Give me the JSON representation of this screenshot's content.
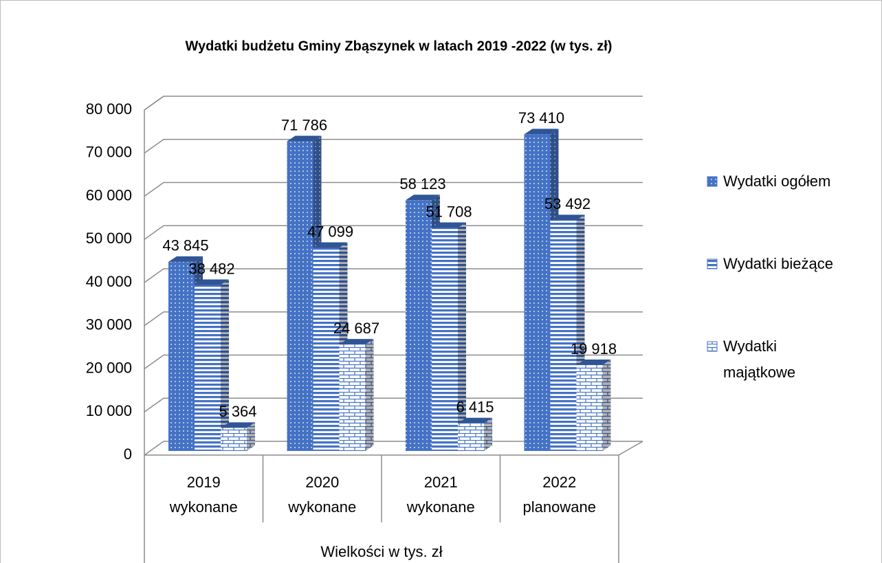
{
  "chart_data": {
    "type": "bar3d",
    "title": "Wydatki budżetu Gminy Zbąszynek w latach 2019 -2022 (w tys. zł)",
    "categories": [
      "2019 wykonane",
      "2020 wykonane",
      "2021 wykonane",
      "2022 planowane"
    ],
    "category_group": "Wielkości w tys. zł",
    "series": [
      {
        "name": "Wydatki ogółem",
        "color": "#4472c4",
        "pattern": "dots",
        "values": [
          43845,
          71786,
          58123,
          73410
        ],
        "value_labels": [
          "43 845",
          "71 786",
          "58 123",
          "73 410"
        ]
      },
      {
        "name": "Wydatki bieżące",
        "color": "#4472c4",
        "pattern": "stripes",
        "values": [
          38482,
          47099,
          51708,
          53492
        ],
        "value_labels": [
          "38 482",
          "47 099",
          "51 708",
          "53 492"
        ]
      },
      {
        "name": "Wydatki majątkowe",
        "color": "#4472c4",
        "pattern": "bricks",
        "values": [
          5364,
          24687,
          6415,
          19918
        ],
        "value_labels": [
          "5 364",
          "24 687",
          "6 415",
          "19 918"
        ]
      }
    ],
    "ylim": [
      0,
      80000
    ],
    "yticks": [
      0,
      {
        "value": 10000,
        "label": "10 000"
      },
      {
        "value": 20000,
        "label": "20 000"
      },
      {
        "value": 30000,
        "label": "30 000"
      },
      {
        "value": 40000,
        "label": "40 000"
      },
      {
        "value": 50000,
        "label": "50 000"
      },
      {
        "value": 60000,
        "label": "60 000"
      },
      {
        "value": 70000,
        "label": "70 000"
      },
      {
        "value": 80000,
        "label": "80 000"
      }
    ],
    "grid": true,
    "legend": "right"
  }
}
